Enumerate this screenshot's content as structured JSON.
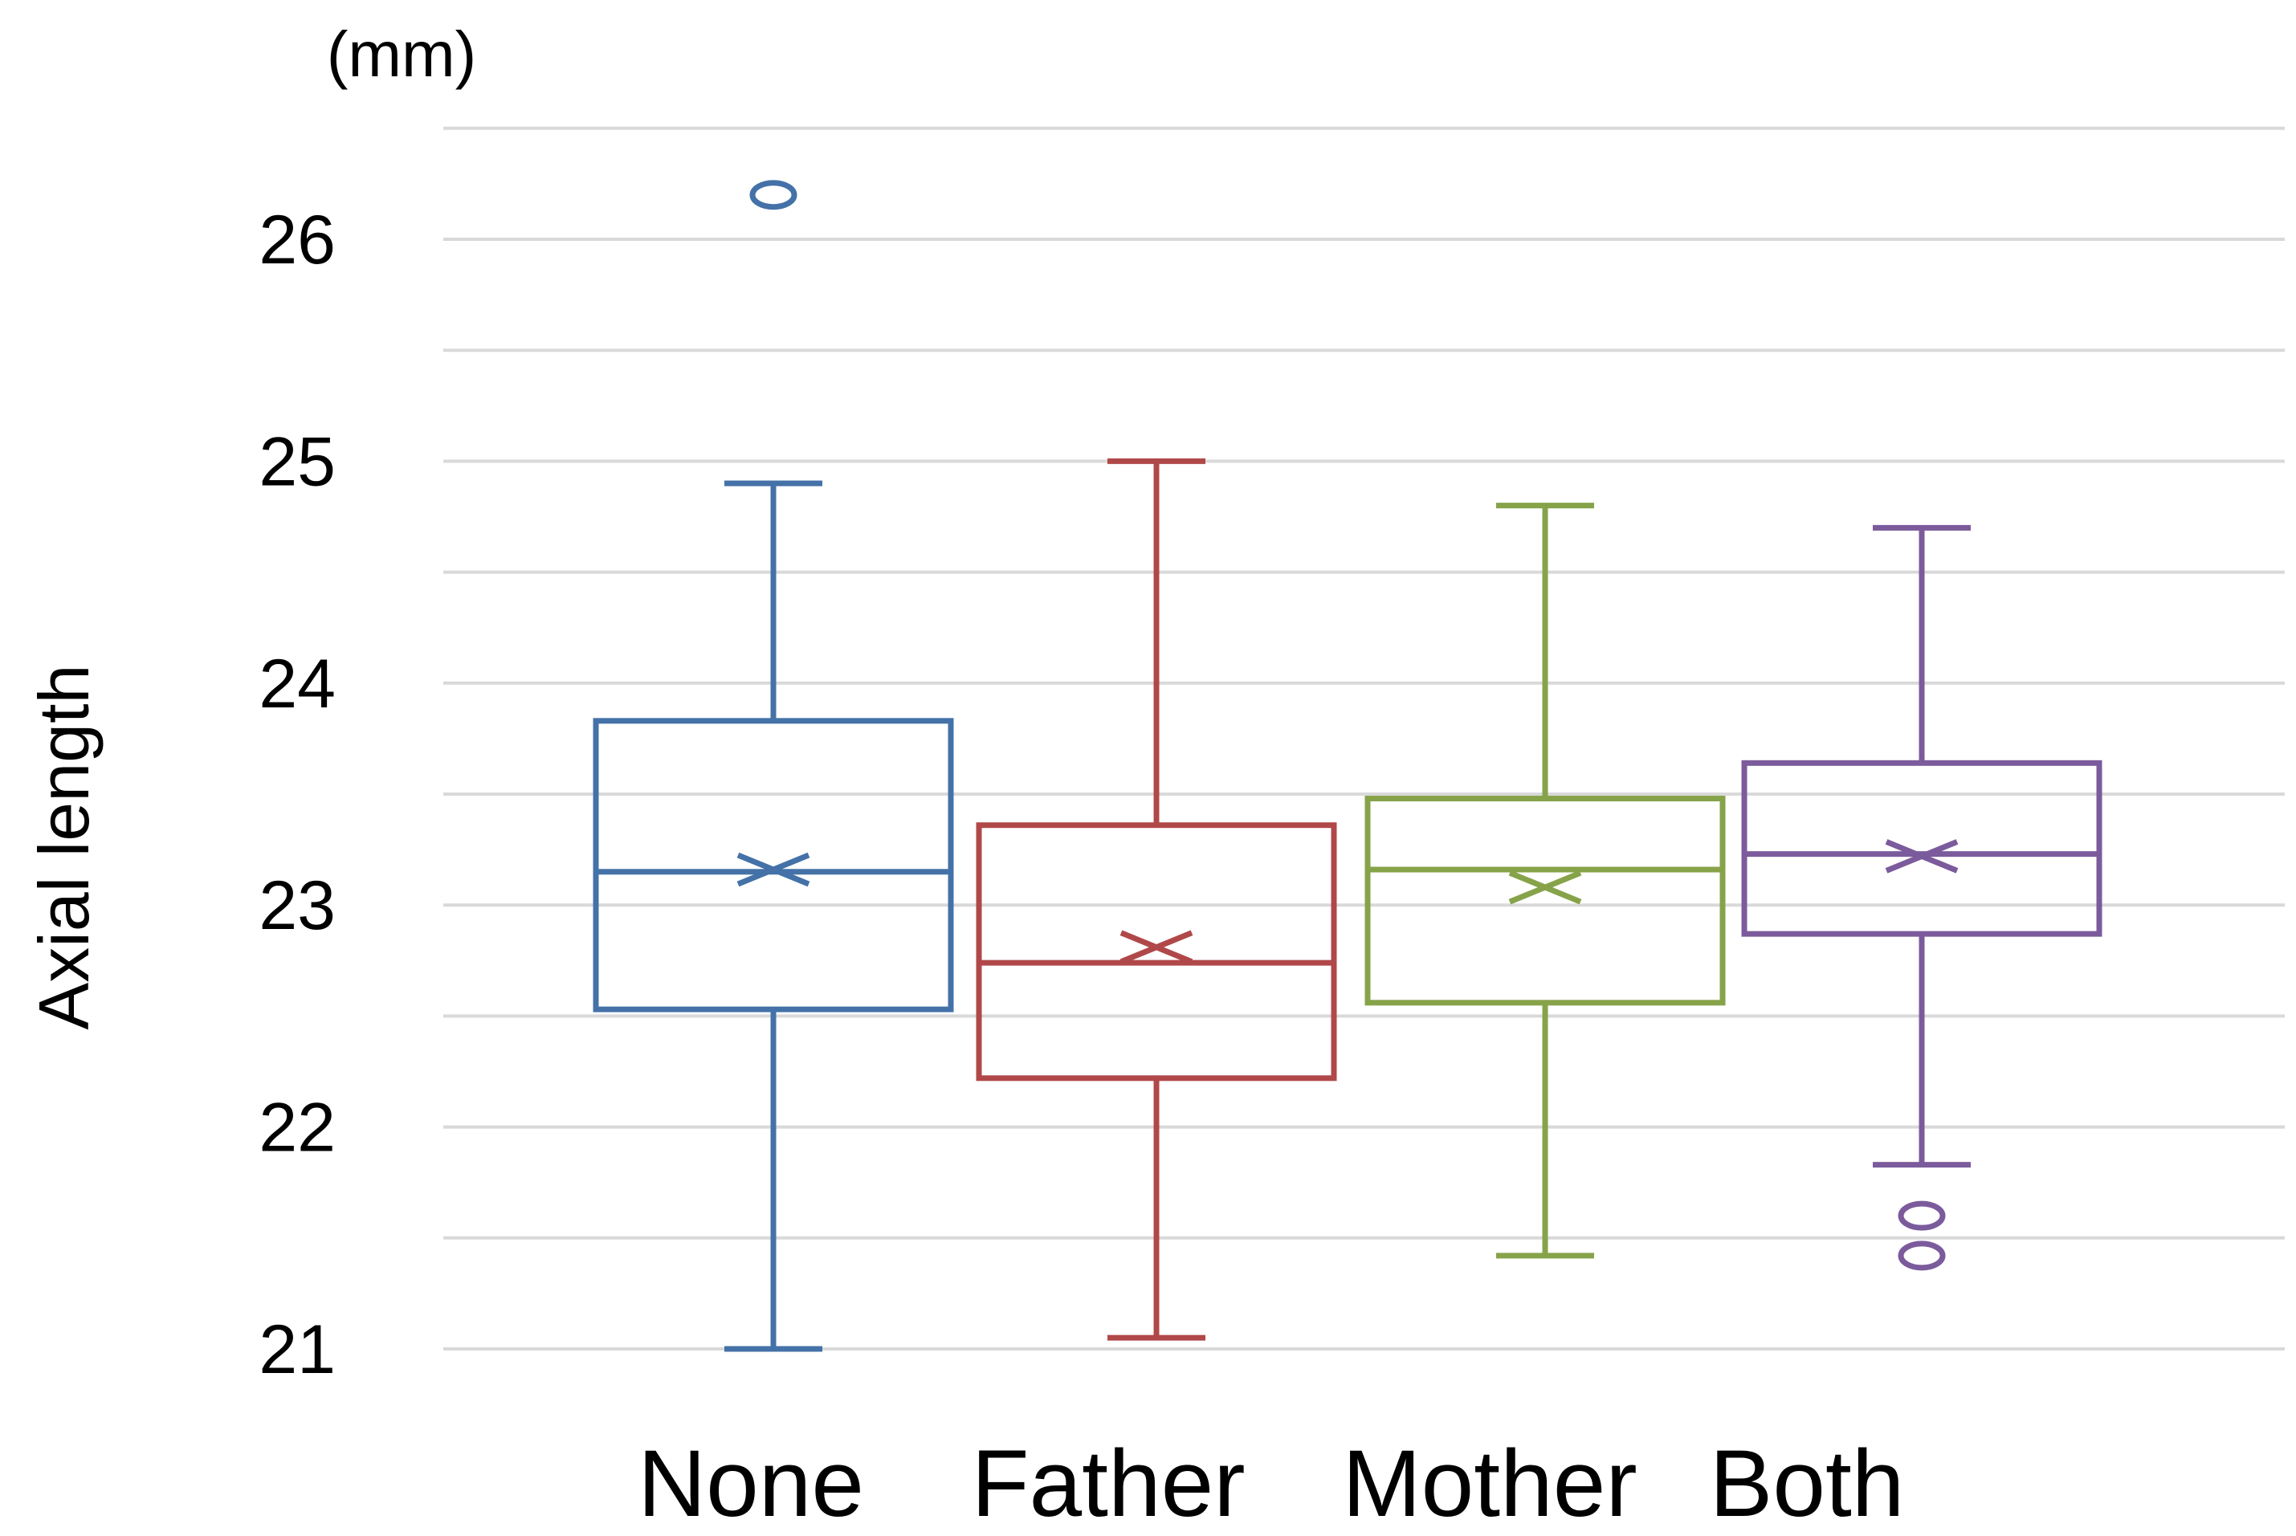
{
  "chart_data": {
    "type": "box",
    "title": "",
    "xlabel": "",
    "ylabel": "Axial length",
    "yunit": "(mm)",
    "ylim": [
      21,
      26.5
    ],
    "yticks": [
      21,
      22,
      23,
      24,
      25,
      26
    ],
    "ytick_labels": [
      "21",
      "22",
      "23",
      "24",
      "25",
      "26"
    ],
    "grid": true,
    "categories": [
      "None",
      "Father",
      "Mother",
      "Both"
    ],
    "series": [
      {
        "name": "None",
        "color": "#4472a8",
        "min": 21.0,
        "q1": 22.53,
        "median": 23.15,
        "q3": 23.83,
        "max": 24.9,
        "mean": 23.16,
        "outliers": [
          26.2
        ]
      },
      {
        "name": "Father",
        "color": "#b0484a",
        "min": 21.05,
        "q1": 22.22,
        "median": 22.74,
        "q3": 23.36,
        "max": 25.0,
        "mean": 22.81,
        "outliers": []
      },
      {
        "name": "Mother",
        "color": "#86a34a",
        "min": 21.42,
        "q1": 22.56,
        "median": 23.16,
        "q3": 23.48,
        "max": 24.8,
        "mean": 23.08,
        "outliers": []
      },
      {
        "name": "Both",
        "color": "#7b5b9c",
        "min": 21.83,
        "q1": 22.87,
        "median": 23.23,
        "q3": 23.64,
        "max": 24.7,
        "mean": 23.22,
        "outliers": [
          21.6,
          21.42
        ]
      }
    ]
  }
}
